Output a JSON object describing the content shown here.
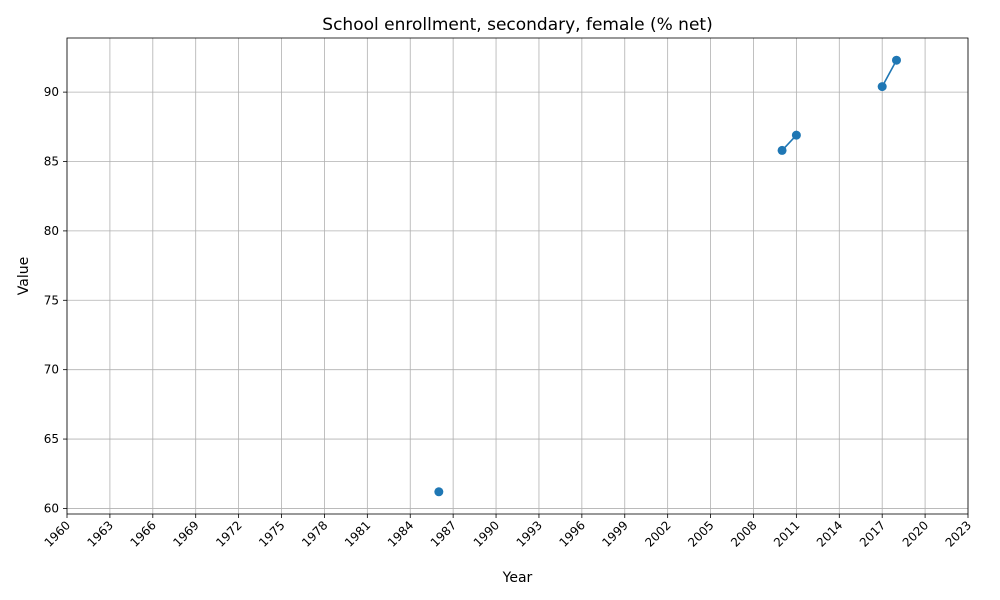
{
  "chart_data": {
    "type": "line",
    "title": "School enrollment, secondary, female (% net)",
    "xlabel": "Year",
    "ylabel": "Value",
    "xlim": [
      1960,
      2023
    ],
    "ylim": [
      59.6,
      93.9
    ],
    "xticks": [
      1960,
      1963,
      1966,
      1969,
      1972,
      1975,
      1978,
      1981,
      1984,
      1987,
      1990,
      1993,
      1996,
      1999,
      2002,
      2005,
      2008,
      2011,
      2014,
      2017,
      2020,
      2023
    ],
    "yticks": [
      60,
      65,
      70,
      75,
      80,
      85,
      90
    ],
    "grid": true,
    "series": [
      {
        "color": "#1f77b4",
        "marker": "circle",
        "x": [
          1986,
          2010,
          2011,
          2017,
          2018
        ],
        "y": [
          61.2,
          85.8,
          86.9,
          90.4,
          92.3
        ],
        "segments": [
          [
            1986
          ],
          [
            2010,
            2011
          ],
          [
            2017,
            2018
          ]
        ]
      }
    ]
  }
}
